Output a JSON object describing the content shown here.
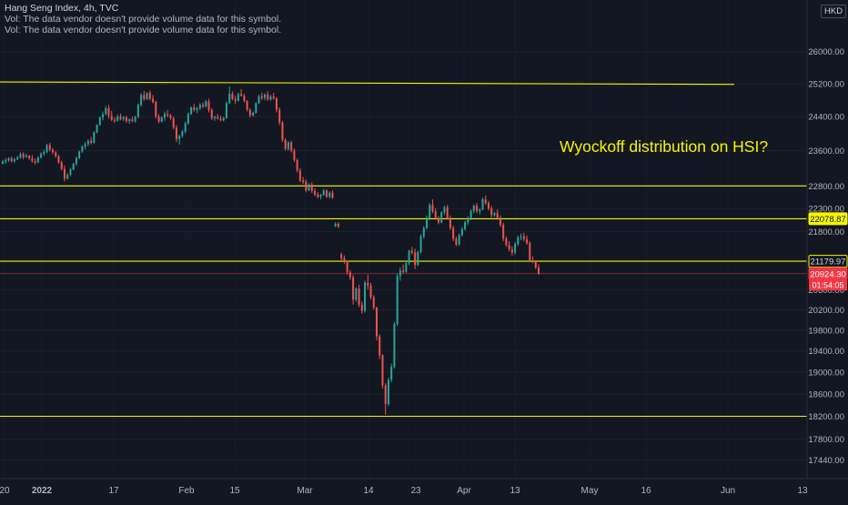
{
  "legend": {
    "title": "Hang Seng Index, 4h, TVC",
    "vol_line_1": "Vol: The data vendor doesn't provide volume data for this symbol.",
    "vol_line_2": "Vol: The data vendor doesn't provide volume data for this symbol."
  },
  "currency": "HKD",
  "annotation_text": "Wyockoff distribution on HSI?",
  "price_axis": {
    "ticks": [
      "26000.00",
      "25200.00",
      "24400.00",
      "23600.00",
      "22800.00",
      "22300.00",
      "21800.00",
      "20600.00",
      "20200.00",
      "19800.00",
      "19400.00",
      "19000.00",
      "18600.00",
      "18200.00",
      "17800.00",
      "17440.00"
    ]
  },
  "time_axis": {
    "labels": [
      "20",
      "2022",
      "17",
      "Feb",
      "15",
      "Mar",
      "14",
      "23",
      "Apr",
      "13",
      "May",
      "16",
      "Jun",
      "13"
    ]
  },
  "price_badges": {
    "level_upper": "22078.87",
    "level_lower": "21179.97",
    "last_price": "20924.30",
    "countdown": "01:54:05"
  },
  "colors": {
    "background": "#131722",
    "up": "#26a69a",
    "down": "#ef5350",
    "level_line": "#f5f500",
    "annotation": "#f5f500",
    "last_price": "#f23645"
  },
  "chart_data": {
    "type": "candlestick",
    "symbol": "Hang Seng Index",
    "interval": "4h",
    "ylim": [
      17200,
      27200
    ],
    "y_scale": "log",
    "candles": [
      [
        23300,
        23390,
        23290,
        23350
      ],
      [
        23350,
        23430,
        23300,
        23380
      ],
      [
        23380,
        23450,
        23340,
        23420
      ],
      [
        23420,
        23470,
        23330,
        23360
      ],
      [
        23360,
        23440,
        23320,
        23400
      ],
      [
        23400,
        23480,
        23380,
        23440
      ],
      [
        23440,
        23560,
        23420,
        23520
      ],
      [
        23520,
        23560,
        23400,
        23450
      ],
      [
        23450,
        23530,
        23440,
        23480
      ],
      [
        23480,
        23500,
        23390,
        23420
      ],
      [
        23420,
        23500,
        23320,
        23360
      ],
      [
        23360,
        23420,
        23280,
        23330
      ],
      [
        23330,
        23470,
        23310,
        23440
      ],
      [
        23440,
        23560,
        23420,
        23530
      ],
      [
        23530,
        23620,
        23480,
        23570
      ],
      [
        23570,
        23760,
        23540,
        23730
      ],
      [
        23730,
        23780,
        23580,
        23620
      ],
      [
        23620,
        23660,
        23520,
        23560
      ],
      [
        23560,
        23590,
        23440,
        23470
      ],
      [
        23470,
        23500,
        23300,
        23330
      ],
      [
        23330,
        23370,
        23150,
        23180
      ],
      [
        23180,
        23260,
        22900,
        22960
      ],
      [
        22960,
        23080,
        22940,
        23050
      ],
      [
        23050,
        23200,
        23020,
        23170
      ],
      [
        23170,
        23320,
        23150,
        23300
      ],
      [
        23300,
        23460,
        23250,
        23430
      ],
      [
        23430,
        23600,
        23400,
        23580
      ],
      [
        23580,
        23720,
        23550,
        23690
      ],
      [
        23690,
        23800,
        23630,
        23750
      ],
      [
        23750,
        23860,
        23700,
        23830
      ],
      [
        23830,
        23920,
        23740,
        23780
      ],
      [
        23780,
        24050,
        23760,
        24030
      ],
      [
        24030,
        24220,
        24000,
        24200
      ],
      [
        24200,
        24410,
        24180,
        24380
      ],
      [
        24380,
        24520,
        24310,
        24460
      ],
      [
        24460,
        24650,
        24430,
        24600
      ],
      [
        24600,
        24680,
        24350,
        24420
      ],
      [
        24420,
        24530,
        24290,
        24320
      ],
      [
        24320,
        24380,
        24250,
        24300
      ],
      [
        24300,
        24450,
        24280,
        24400
      ],
      [
        24400,
        24470,
        24310,
        24340
      ],
      [
        24340,
        24420,
        24290,
        24380
      ],
      [
        24380,
        24420,
        24250,
        24290
      ],
      [
        24290,
        24360,
        24230,
        24330
      ],
      [
        24330,
        24400,
        24260,
        24290
      ],
      [
        24290,
        24420,
        24250,
        24390
      ],
      [
        24390,
        24710,
        24360,
        24680
      ],
      [
        24680,
        24970,
        24640,
        24920
      ],
      [
        24920,
        25020,
        24780,
        24820
      ],
      [
        24820,
        24990,
        24800,
        24970
      ],
      [
        24970,
        25030,
        24790,
        24830
      ],
      [
        24830,
        24920,
        24720,
        24750
      ],
      [
        24750,
        24780,
        24350,
        24400
      ],
      [
        24400,
        24460,
        24240,
        24280
      ],
      [
        24280,
        24400,
        24260,
        24380
      ],
      [
        24380,
        24520,
        24300,
        24460
      ],
      [
        24460,
        24560,
        24380,
        24430
      ],
      [
        24430,
        24460,
        24320,
        24360
      ],
      [
        24360,
        24400,
        24100,
        24140
      ],
      [
        24140,
        24200,
        23800,
        23870
      ],
      [
        23870,
        23970,
        23740,
        23940
      ],
      [
        23940,
        24080,
        23900,
        24050
      ],
      [
        24050,
        24280,
        24000,
        24240
      ],
      [
        24240,
        24500,
        24200,
        24460
      ],
      [
        24460,
        24640,
        24440,
        24620
      ],
      [
        24620,
        24700,
        24520,
        24560
      ],
      [
        24560,
        24630,
        24480,
        24600
      ],
      [
        24600,
        24720,
        24550,
        24680
      ],
      [
        24680,
        24740,
        24600,
        24640
      ],
      [
        24640,
        24800,
        24620,
        24760
      ],
      [
        24760,
        24830,
        24500,
        24560
      ],
      [
        24560,
        24600,
        24320,
        24360
      ],
      [
        24360,
        24420,
        24300,
        24390
      ],
      [
        24390,
        24460,
        24330,
        24350
      ],
      [
        24350,
        24420,
        24290,
        24310
      ],
      [
        24310,
        24400,
        24280,
        24360
      ],
      [
        24360,
        24760,
        24340,
        24720
      ],
      [
        24720,
        25130,
        24700,
        24950
      ],
      [
        24950,
        25010,
        24790,
        24820
      ],
      [
        24820,
        24900,
        24700,
        24780
      ],
      [
        24780,
        24980,
        24760,
        24940
      ],
      [
        24940,
        25060,
        24880,
        24900
      ],
      [
        24900,
        24950,
        24740,
        24780
      ],
      [
        24780,
        24790,
        24520,
        24560
      ],
      [
        24560,
        24600,
        24380,
        24430
      ],
      [
        24430,
        24520,
        24400,
        24490
      ],
      [
        24490,
        24740,
        24470,
        24720
      ],
      [
        24720,
        24930,
        24700,
        24890
      ],
      [
        24890,
        24980,
        24800,
        24850
      ],
      [
        24850,
        24960,
        24790,
        24930
      ],
      [
        24930,
        25010,
        24780,
        24810
      ],
      [
        24810,
        24920,
        24780,
        24880
      ],
      [
        24880,
        24970,
        24800,
        24840
      ],
      [
        24840,
        24870,
        24500,
        24560
      ],
      [
        24560,
        24620,
        24200,
        24260
      ],
      [
        24260,
        24300,
        23800,
        23850
      ],
      [
        23850,
        23880,
        23600,
        23640
      ],
      [
        23640,
        23820,
        23600,
        23790
      ],
      [
        23790,
        23830,
        23560,
        23600
      ],
      [
        23600,
        23650,
        23340,
        23380
      ],
      [
        23380,
        23420,
        23100,
        23150
      ],
      [
        23150,
        23200,
        22880,
        22920
      ],
      [
        22920,
        23000,
        22840,
        22890
      ],
      [
        22890,
        22940,
        22660,
        22700
      ],
      [
        22700,
        22860,
        22680,
        22830
      ],
      [
        22830,
        22880,
        22640,
        22690
      ],
      [
        22690,
        22750,
        22570,
        22610
      ],
      [
        22610,
        22660,
        22520,
        22560
      ],
      [
        22560,
        22620,
        22500,
        22600
      ],
      [
        22600,
        22730,
        22580,
        22700
      ],
      [
        22700,
        22720,
        22530,
        22560
      ],
      [
        22560,
        22680,
        22520,
        22650
      ],
      [
        22650,
        22700,
        22510,
        22540
      ],
      [
        21920,
        22000,
        21900,
        21970
      ],
      [
        21970,
        22000,
        21880,
        21910
      ],
      [
        21320,
        21360,
        21200,
        21240
      ],
      [
        21240,
        21300,
        21130,
        21180
      ],
      [
        21180,
        21190,
        20900,
        20950
      ],
      [
        20950,
        21000,
        20800,
        20850
      ],
      [
        20850,
        20900,
        20300,
        20400
      ],
      [
        20400,
        20650,
        20360,
        20620
      ],
      [
        20620,
        20700,
        20250,
        20300
      ],
      [
        20300,
        20360,
        20120,
        20180
      ],
      [
        20180,
        20780,
        20140,
        20740
      ],
      [
        20740,
        20900,
        20600,
        20680
      ],
      [
        20680,
        20740,
        20400,
        20450
      ],
      [
        20450,
        20490,
        20200,
        20240
      ],
      [
        20240,
        20260,
        19600,
        19680
      ],
      [
        19680,
        19720,
        19250,
        19320
      ],
      [
        19320,
        19340,
        18700,
        18760
      ],
      [
        18760,
        18800,
        18230,
        18420
      ],
      [
        18420,
        18900,
        18380,
        18860
      ],
      [
        18860,
        19160,
        18820,
        19100
      ],
      [
        19100,
        19960,
        19070,
        19920
      ],
      [
        19920,
        20930,
        19880,
        20880
      ],
      [
        20880,
        21050,
        20780,
        20990
      ],
      [
        20990,
        21110,
        20920,
        20960
      ],
      [
        20960,
        21180,
        20940,
        21140
      ],
      [
        21140,
        21420,
        21100,
        21400
      ],
      [
        21400,
        21480,
        21320,
        21360
      ],
      [
        21360,
        21440,
        21020,
        21100
      ],
      [
        21100,
        21400,
        21080,
        21370
      ],
      [
        21370,
        21750,
        21340,
        21700
      ],
      [
        21700,
        21920,
        21650,
        21880
      ],
      [
        21880,
        22150,
        21850,
        22100
      ],
      [
        22100,
        22420,
        22050,
        22380
      ],
      [
        22380,
        22500,
        22200,
        22240
      ],
      [
        22240,
        22300,
        22050,
        22100
      ],
      [
        22100,
        22140,
        21960,
        22000
      ],
      [
        22000,
        22240,
        21980,
        22220
      ],
      [
        22220,
        22360,
        22160,
        22330
      ],
      [
        22330,
        22380,
        22060,
        22100
      ],
      [
        22100,
        22150,
        21840,
        21880
      ],
      [
        21880,
        21930,
        21600,
        21650
      ],
      [
        21650,
        21700,
        21490,
        21530
      ],
      [
        21530,
        21760,
        21500,
        21730
      ],
      [
        21730,
        21900,
        21700,
        21860
      ],
      [
        21860,
        22040,
        21820,
        22000
      ],
      [
        22000,
        22130,
        21950,
        22090
      ],
      [
        22090,
        22280,
        22050,
        22250
      ],
      [
        22250,
        22390,
        22200,
        22360
      ],
      [
        22360,
        22420,
        22200,
        22240
      ],
      [
        22240,
        22310,
        22170,
        22280
      ],
      [
        22280,
        22540,
        22260,
        22500
      ],
      [
        22500,
        22590,
        22380,
        22420
      ],
      [
        22420,
        22470,
        22260,
        22300
      ],
      [
        22300,
        22360,
        22100,
        22160
      ],
      [
        22160,
        22230,
        22120,
        22200
      ],
      [
        22200,
        22280,
        22060,
        22100
      ],
      [
        22100,
        22150,
        21900,
        21950
      ],
      [
        21950,
        21990,
        21600,
        21650
      ],
      [
        21650,
        21700,
        21480,
        21520
      ],
      [
        21520,
        21600,
        21380,
        21430
      ],
      [
        21430,
        21490,
        21300,
        21360
      ],
      [
        21360,
        21580,
        21320,
        21540
      ],
      [
        21540,
        21720,
        21500,
        21680
      ],
      [
        21680,
        21760,
        21620,
        21700
      ],
      [
        21700,
        21780,
        21600,
        21640
      ],
      [
        21640,
        21720,
        21520,
        21560
      ],
      [
        21560,
        21600,
        21160,
        21200
      ],
      [
        21200,
        21280,
        21140,
        21180
      ],
      [
        21180,
        21200,
        21020,
        21050
      ],
      [
        21050,
        21120,
        20900,
        20924.3
      ]
    ],
    "horizontal_levels": [
      {
        "price": 22078.87,
        "label": "22078.87"
      },
      {
        "price": 21179.97,
        "label": "21179.97"
      },
      {
        "price": 22800,
        "label": ""
      },
      {
        "price": 18200,
        "label": ""
      }
    ],
    "trendline": {
      "from_price": 25240,
      "to_price": 25180
    },
    "last_price": 20924.3
  }
}
